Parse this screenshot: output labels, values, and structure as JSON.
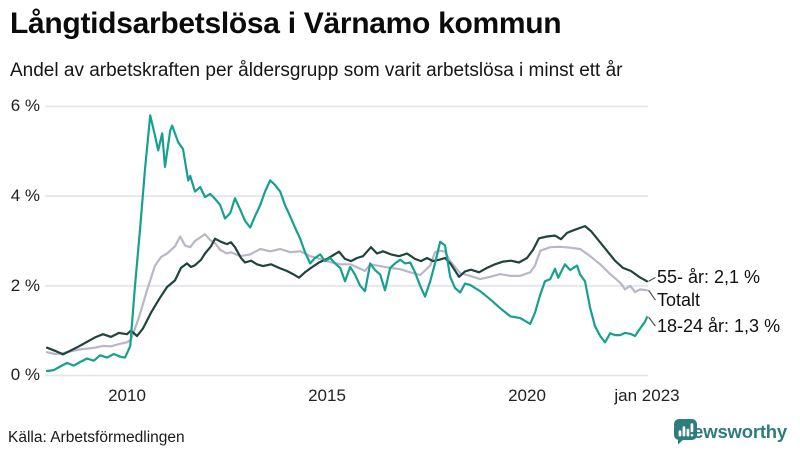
{
  "header": {
    "title": "Långtidsarbetslösa i Värnamo kommun",
    "subtitle": "Andel av arbetskraften per åldersgrupp som varit arbetslösa i minst ett år"
  },
  "footer": {
    "source": "Källa: Arbetsförmedlingen",
    "brand": "Newsworthy"
  },
  "colors": {
    "series_55": "#1e443d",
    "series_total": "#b9b7c6",
    "series_18_24": "#17a08e",
    "gridline": "#e6e5eb",
    "brand_teal": "#2e7c7c",
    "connector": "#555555"
  },
  "chart_data": {
    "type": "line",
    "title": "Långtidsarbetslösa i Värnamo kommun",
    "subtitle": "Andel av arbetskraften per åldersgrupp som varit arbetslösa i minst ett år",
    "grid": true,
    "legend_position": "right-end-labels",
    "ylim": [
      0,
      6.3
    ],
    "xlim": [
      2007.95,
      2023.0
    ],
    "y_ticks": [
      {
        "label": "6 %",
        "value": 6
      },
      {
        "label": "4 %",
        "value": 4
      },
      {
        "label": "2 %",
        "value": 2
      },
      {
        "label": "0 %",
        "value": 0
      }
    ],
    "x_ticks": [
      {
        "label": "2010",
        "year": 2010
      },
      {
        "label": "2015",
        "year": 2015
      },
      {
        "label": "2020",
        "year": 2020
      },
      {
        "label": "jan 2023",
        "year": 2023
      }
    ],
    "series": [
      {
        "name": "55- år",
        "end_label": "55- år: 2,1 %",
        "end_value_label": "2,1 %",
        "color": "#1e443d",
        "x": [
          2008.0,
          2008.2,
          2008.4,
          2008.6,
          2008.8,
          2009.0,
          2009.2,
          2009.4,
          2009.6,
          2009.8,
          2010.0,
          2010.1,
          2010.25,
          2010.4,
          2010.6,
          2010.8,
          2011.0,
          2011.2,
          2011.35,
          2011.5,
          2011.6,
          2011.7,
          2011.85,
          2011.95,
          2012.1,
          2012.2,
          2012.35,
          2012.5,
          2012.6,
          2012.7,
          2012.85,
          2012.95,
          2013.1,
          2013.25,
          2013.4,
          2013.6,
          2013.8,
          2014.0,
          2014.15,
          2014.3,
          2014.45,
          2014.6,
          2014.8,
          2015.0,
          2015.15,
          2015.3,
          2015.45,
          2015.6,
          2015.75,
          2015.9,
          2016.1,
          2016.25,
          2016.4,
          2016.6,
          2016.8,
          2017.0,
          2017.2,
          2017.35,
          2017.5,
          2017.65,
          2017.8,
          2017.95,
          2018.1,
          2018.3,
          2018.45,
          2018.6,
          2018.8,
          2019.0,
          2019.2,
          2019.4,
          2019.6,
          2019.8,
          2020.0,
          2020.15,
          2020.3,
          2020.5,
          2020.7,
          2020.85,
          2021.0,
          2021.2,
          2021.45,
          2021.6,
          2021.8,
          2022.0,
          2022.2,
          2022.4,
          2022.6,
          2022.8,
          2023.0
        ],
        "values": [
          0.62,
          0.55,
          0.47,
          0.56,
          0.65,
          0.75,
          0.85,
          0.92,
          0.86,
          0.95,
          0.92,
          1.0,
          0.88,
          1.05,
          1.4,
          1.7,
          1.97,
          2.12,
          2.4,
          2.5,
          2.42,
          2.46,
          2.58,
          2.72,
          2.88,
          3.05,
          2.98,
          2.93,
          2.97,
          2.86,
          2.62,
          2.52,
          2.56,
          2.48,
          2.44,
          2.48,
          2.4,
          2.33,
          2.26,
          2.18,
          2.3,
          2.4,
          2.52,
          2.6,
          2.68,
          2.76,
          2.6,
          2.55,
          2.62,
          2.66,
          2.86,
          2.72,
          2.77,
          2.7,
          2.66,
          2.72,
          2.6,
          2.55,
          2.62,
          2.55,
          2.58,
          2.62,
          2.48,
          2.2,
          2.32,
          2.36,
          2.3,
          2.4,
          2.48,
          2.54,
          2.56,
          2.52,
          2.62,
          2.8,
          3.06,
          3.1,
          3.12,
          3.04,
          3.18,
          3.25,
          3.33,
          3.22,
          3.0,
          2.78,
          2.56,
          2.4,
          2.33,
          2.2,
          2.1
        ]
      },
      {
        "name": "Totalt",
        "end_label": "Totalt",
        "end_value_label": "",
        "color": "#b9b7c6",
        "x": [
          2008.0,
          2008.2,
          2008.4,
          2008.6,
          2008.8,
          2009.0,
          2009.2,
          2009.4,
          2009.6,
          2009.8,
          2010.0,
          2010.1,
          2010.3,
          2010.5,
          2010.7,
          2010.85,
          2011.0,
          2011.1,
          2011.2,
          2011.33,
          2011.45,
          2011.58,
          2011.7,
          2011.83,
          2011.95,
          2012.08,
          2012.2,
          2012.33,
          2012.5,
          2012.6,
          2012.83,
          2013.08,
          2013.33,
          2013.58,
          2013.83,
          2014.08,
          2014.33,
          2014.58,
          2014.83,
          2015.08,
          2015.33,
          2015.58,
          2015.83,
          2015.95,
          2016.08,
          2016.33,
          2016.58,
          2016.83,
          2017.08,
          2017.33,
          2017.58,
          2017.7,
          2017.83,
          2017.95,
          2018.08,
          2018.33,
          2018.58,
          2018.83,
          2019.08,
          2019.33,
          2019.58,
          2019.83,
          2020.08,
          2020.2,
          2020.33,
          2020.58,
          2020.83,
          2021.08,
          2021.33,
          2021.58,
          2021.83,
          2022.08,
          2022.33,
          2022.45,
          2022.58,
          2022.7,
          2022.83,
          2023.0
        ],
        "values": [
          0.52,
          0.48,
          0.5,
          0.54,
          0.58,
          0.6,
          0.62,
          0.66,
          0.65,
          0.7,
          0.74,
          0.8,
          1.3,
          1.9,
          2.45,
          2.64,
          2.72,
          2.8,
          2.88,
          3.1,
          2.9,
          2.86,
          3.0,
          3.08,
          3.15,
          3.02,
          2.95,
          2.8,
          2.72,
          2.75,
          2.66,
          2.7,
          2.82,
          2.77,
          2.82,
          2.75,
          2.77,
          2.66,
          2.6,
          2.53,
          2.48,
          2.48,
          2.38,
          2.33,
          2.48,
          2.44,
          2.4,
          2.37,
          2.3,
          2.24,
          2.45,
          2.75,
          2.78,
          2.76,
          2.55,
          2.28,
          2.22,
          2.15,
          2.2,
          2.26,
          2.22,
          2.22,
          2.3,
          2.45,
          2.78,
          2.86,
          2.87,
          2.85,
          2.82,
          2.66,
          2.48,
          2.26,
          2.07,
          1.92,
          2.0,
          1.86,
          1.92,
          1.9
        ]
      },
      {
        "name": "18-24 år",
        "end_label": "18-24 år: 1,3 %",
        "end_value_label": "1,3 %",
        "color": "#17a08e",
        "x": [
          2008.0,
          2008.17,
          2008.33,
          2008.5,
          2008.67,
          2008.83,
          2009.0,
          2009.17,
          2009.33,
          2009.5,
          2009.67,
          2009.83,
          2009.95,
          2010.08,
          2010.2,
          2010.33,
          2010.45,
          2010.58,
          2010.7,
          2010.78,
          2010.88,
          2010.95,
          2011.08,
          2011.13,
          2011.28,
          2011.4,
          2011.53,
          2011.58,
          2011.7,
          2011.83,
          2011.95,
          2012.08,
          2012.2,
          2012.33,
          2012.45,
          2012.58,
          2012.7,
          2012.83,
          2012.95,
          2013.08,
          2013.2,
          2013.33,
          2013.45,
          2013.58,
          2013.7,
          2013.83,
          2013.95,
          2014.08,
          2014.2,
          2014.33,
          2014.45,
          2014.58,
          2014.7,
          2014.83,
          2014.95,
          2015.08,
          2015.2,
          2015.33,
          2015.45,
          2015.58,
          2015.7,
          2015.83,
          2015.95,
          2016.08,
          2016.2,
          2016.33,
          2016.45,
          2016.58,
          2016.7,
          2016.83,
          2016.95,
          2017.08,
          2017.2,
          2017.33,
          2017.45,
          2017.58,
          2017.7,
          2017.83,
          2017.95,
          2018.08,
          2018.2,
          2018.33,
          2018.45,
          2018.58,
          2018.7,
          2018.83,
          2019.08,
          2019.33,
          2019.58,
          2019.83,
          2020.08,
          2020.2,
          2020.33,
          2020.45,
          2020.58,
          2020.7,
          2020.78,
          2020.95,
          2021.08,
          2021.25,
          2021.33,
          2021.45,
          2021.58,
          2021.7,
          2021.83,
          2021.95,
          2022.08,
          2022.2,
          2022.33,
          2022.45,
          2022.58,
          2022.7,
          2022.83,
          2022.95,
          2023.0
        ],
        "values": [
          0.1,
          0.12,
          0.2,
          0.28,
          0.22,
          0.3,
          0.38,
          0.33,
          0.45,
          0.4,
          0.48,
          0.42,
          0.4,
          0.65,
          2.0,
          3.3,
          4.6,
          5.8,
          5.35,
          5.02,
          5.4,
          4.65,
          5.46,
          5.57,
          5.2,
          5.05,
          4.35,
          4.45,
          4.1,
          4.2,
          3.98,
          4.05,
          3.94,
          3.8,
          3.5,
          3.62,
          3.95,
          3.7,
          3.45,
          3.3,
          3.55,
          3.8,
          4.1,
          4.35,
          4.25,
          4.1,
          3.8,
          3.55,
          3.3,
          3.05,
          2.75,
          2.5,
          2.62,
          2.7,
          2.55,
          2.62,
          2.5,
          2.4,
          2.1,
          2.42,
          2.25,
          2.0,
          1.88,
          2.5,
          2.35,
          2.25,
          1.9,
          2.4,
          2.5,
          2.58,
          2.5,
          2.52,
          2.3,
          2.0,
          1.76,
          2.1,
          2.5,
          2.98,
          2.9,
          2.2,
          1.95,
          1.85,
          2.05,
          2.02,
          1.95,
          1.88,
          1.7,
          1.5,
          1.32,
          1.28,
          1.15,
          1.4,
          1.8,
          2.1,
          2.15,
          2.38,
          2.18,
          2.48,
          2.35,
          2.45,
          2.25,
          2.1,
          1.5,
          1.1,
          0.88,
          0.74,
          0.94,
          0.9,
          0.9,
          0.95,
          0.93,
          0.88,
          1.05,
          1.2,
          1.3
        ]
      }
    ]
  }
}
